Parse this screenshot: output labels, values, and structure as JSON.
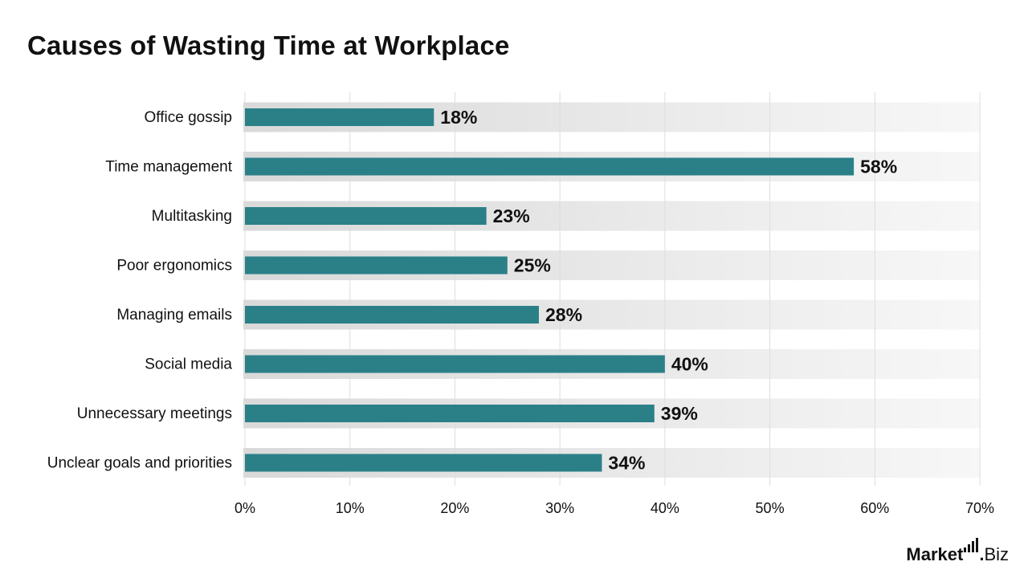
{
  "chart_data": {
    "type": "bar",
    "orientation": "horizontal",
    "title": "Causes of Wasting Time at Workplace",
    "categories": [
      "Office gossip",
      "Time management",
      "Multitasking",
      "Poor ergonomics",
      "Managing emails",
      "Social media",
      "Unnecessary meetings",
      "Unclear goals and priorities"
    ],
    "values": [
      18,
      58,
      23,
      25,
      28,
      40,
      39,
      34
    ],
    "value_labels": [
      "18%",
      "58%",
      "23%",
      "25%",
      "28%",
      "40%",
      "39%",
      "34%"
    ],
    "xlim": [
      0,
      70
    ],
    "x_ticks": [
      0,
      10,
      20,
      30,
      40,
      50,
      60,
      70
    ],
    "x_tick_labels": [
      "0%",
      "10%",
      "20%",
      "30%",
      "40%",
      "50%",
      "60%",
      "70%"
    ],
    "grid": true,
    "legend": "none",
    "colors": {
      "bar": "#2b8088",
      "track_start": "#d9d9d9",
      "track_end": "#f7f7f7",
      "grid": "#dddddd",
      "text": "#111111"
    }
  },
  "brand": {
    "name_bold": "Market",
    "separator": ".",
    "name_regular": "Biz",
    "icon": "bar-chart-icon"
  }
}
